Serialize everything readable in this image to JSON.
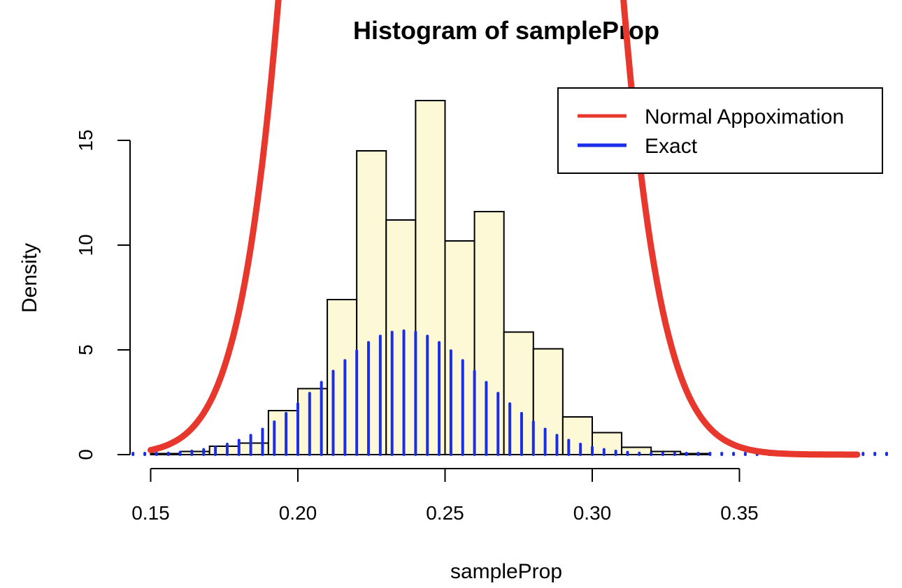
{
  "chart_data": {
    "type": "bar",
    "title": "Histogram of sampleProp",
    "xlabel": "sampleProp",
    "ylabel": "Density",
    "xlim": [
      0.143,
      0.4
    ],
    "ylim": [
      0,
      15
    ],
    "x_ticks": [
      0.15,
      0.2,
      0.25,
      0.3,
      0.35
    ],
    "x_tick_labels": [
      "0.15",
      "0.20",
      "0.25",
      "0.30",
      "0.35"
    ],
    "y_ticks": [
      0,
      5,
      10,
      15
    ],
    "y_tick_labels": [
      "0",
      "5",
      "10",
      "15"
    ],
    "grid": false,
    "legend_position": "top-right",
    "histogram": {
      "fill_color": "#fdf8d6",
      "edge_color": "#000000",
      "bin_edges": [
        0.15,
        0.16,
        0.17,
        0.18,
        0.19,
        0.2,
        0.21,
        0.22,
        0.23,
        0.24,
        0.25,
        0.26,
        0.27,
        0.28,
        0.29,
        0.3,
        0.31,
        0.32,
        0.33,
        0.34
      ],
      "densities": [
        0.05,
        0.15,
        0.4,
        0.55,
        2.1,
        3.15,
        7.4,
        14.5,
        11.2,
        16.9,
        10.2,
        11.6,
        5.85,
        5.05,
        1.8,
        1.05,
        0.35,
        0.15,
        0.05
      ]
    },
    "series": [
      {
        "name": "Normal Appoximation",
        "type": "line",
        "color": "#e8382d",
        "mean": 0.252,
        "sd": 0.0275,
        "x_range": [
          0.15,
          0.39
        ]
      },
      {
        "name": "Exact",
        "type": "spikes",
        "color": "#1a2de8",
        "x_start": 0.144,
        "x_step": 0.004,
        "count": 65,
        "mean": 0.236,
        "sd": 0.027
      }
    ]
  }
}
